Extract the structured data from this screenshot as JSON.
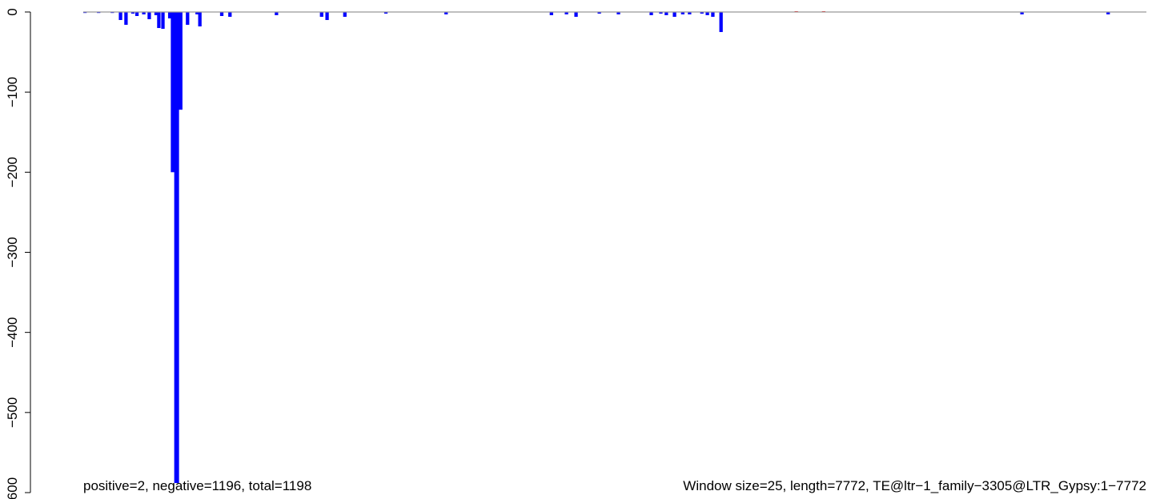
{
  "chart_data": {
    "type": "bar",
    "title": "",
    "xlabel": "",
    "ylabel": "",
    "ylim": [
      -600,
      0
    ],
    "xlim": [
      0,
      7772
    ],
    "y_ticks": [
      0,
      -100,
      -200,
      -300,
      -400,
      -500,
      -600
    ],
    "y_tick_labels": [
      "0",
      "−100",
      "−200",
      "−300",
      "−400",
      "−500",
      "−600"
    ],
    "grid": false,
    "legend": "none",
    "colors": {
      "negative": "#0000ff",
      "positive": "#ff0000",
      "baseline": "#999999"
    },
    "window_size": 25,
    "length": 7772,
    "series": [
      {
        "sign": "negative",
        "points": [
          {
            "x": 0,
            "y": -1
          },
          {
            "x": 100,
            "y": -1
          },
          {
            "x": 200,
            "y": -1
          },
          {
            "x": 300,
            "y": -1
          },
          {
            "x": 260,
            "y": -10
          },
          {
            "x": 300,
            "y": -16
          },
          {
            "x": 350,
            "y": -2
          },
          {
            "x": 380,
            "y": -5
          },
          {
            "x": 430,
            "y": -3
          },
          {
            "x": 470,
            "y": -9
          },
          {
            "x": 520,
            "y": -4
          },
          {
            "x": 540,
            "y": -20
          },
          {
            "x": 570,
            "y": -21
          },
          {
            "x": 620,
            "y": -8
          },
          {
            "x": 640,
            "y": -200
          },
          {
            "x": 665,
            "y": -588
          },
          {
            "x": 690,
            "y": -122
          },
          {
            "x": 750,
            "y": -16
          },
          {
            "x": 820,
            "y": -3
          },
          {
            "x": 840,
            "y": -18
          },
          {
            "x": 1000,
            "y": -5
          },
          {
            "x": 1060,
            "y": -6
          },
          {
            "x": 1400,
            "y": -4
          },
          {
            "x": 1730,
            "y": -6
          },
          {
            "x": 1770,
            "y": -10
          },
          {
            "x": 1900,
            "y": -6
          },
          {
            "x": 2200,
            "y": -2
          },
          {
            "x": 2640,
            "y": -3
          },
          {
            "x": 3410,
            "y": -4
          },
          {
            "x": 3520,
            "y": -3
          },
          {
            "x": 3590,
            "y": -6
          },
          {
            "x": 3760,
            "y": -2
          },
          {
            "x": 3900,
            "y": -3
          },
          {
            "x": 4140,
            "y": -4
          },
          {
            "x": 4210,
            "y": -2
          },
          {
            "x": 4250,
            "y": -4
          },
          {
            "x": 4310,
            "y": -6
          },
          {
            "x": 4370,
            "y": -3
          },
          {
            "x": 4420,
            "y": -3
          },
          {
            "x": 4510,
            "y": -2
          },
          {
            "x": 4550,
            "y": -4
          },
          {
            "x": 4590,
            "y": -6
          },
          {
            "x": 4650,
            "y": -25
          },
          {
            "x": 6850,
            "y": -3
          },
          {
            "x": 7480,
            "y": -3
          }
        ]
      },
      {
        "sign": "positive",
        "points": [
          {
            "x": 5200,
            "y": 1
          },
          {
            "x": 5400,
            "y": 1
          }
        ]
      }
    ],
    "annotation_left": "positive=2, negative=1196, total=1198",
    "annotation_right": "Window size=25, length=7772, TE@ltr−1_family−3305@LTR_Gypsy:1−7772"
  }
}
